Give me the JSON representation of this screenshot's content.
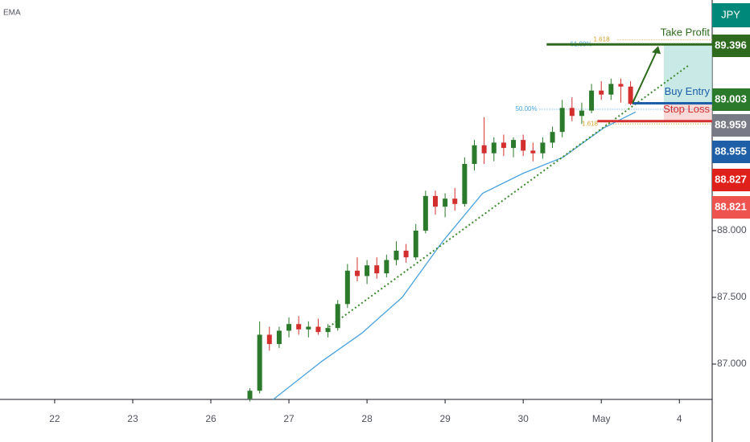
{
  "chart_data": {
    "type": "candlestick",
    "indicator_label": "EMA",
    "symbol_label": "JPY",
    "xlim": [
      -0.7,
      8.42
    ],
    "ylim": [
      86.735,
      89.729
    ],
    "xticks": [
      {
        "value": 0,
        "label": "22"
      },
      {
        "value": 1,
        "label": "23"
      },
      {
        "value": 2,
        "label": "26"
      },
      {
        "value": 3,
        "label": "27"
      },
      {
        "value": 4,
        "label": "28"
      },
      {
        "value": 5,
        "label": "29"
      },
      {
        "value": 6,
        "label": "30"
      },
      {
        "value": 7,
        "label": "May"
      },
      {
        "value": 8,
        "label": "4"
      }
    ],
    "yticks": [
      {
        "value": 87,
        "label": "87.000"
      },
      {
        "value": 87.5,
        "label": "87.500"
      },
      {
        "value": 88,
        "label": "88.000"
      }
    ],
    "up_color": "#2b7a2b",
    "down_color": "#d32f2f",
    "x": [
      2.5,
      2.625,
      2.75,
      2.875,
      3.0,
      3.125,
      3.25,
      3.375,
      3.5,
      3.625,
      3.75,
      3.875,
      4.0,
      4.125,
      4.25,
      4.375,
      4.5,
      4.625,
      4.75,
      4.875,
      5.0,
      5.125,
      5.25,
      5.375,
      5.5,
      5.625,
      5.75,
      5.875,
      6.0,
      6.125,
      6.25,
      6.375,
      6.5,
      6.625,
      6.75,
      6.875,
      7.0,
      7.125,
      7.25,
      7.375
    ],
    "open": [
      86.74,
      86.8,
      87.22,
      87.15,
      87.25,
      87.3,
      87.26,
      87.28,
      87.24,
      87.27,
      87.45,
      87.7,
      87.66,
      87.74,
      87.68,
      87.78,
      87.85,
      87.8,
      88.0,
      88.26,
      88.18,
      88.24,
      88.2,
      88.5,
      88.64,
      88.58,
      88.66,
      88.62,
      88.68,
      88.6,
      88.58,
      88.66,
      88.74,
      88.92,
      88.86,
      88.9,
      89.05,
      89.02,
      89.1,
      89.08
    ],
    "high": [
      86.82,
      87.32,
      87.28,
      87.28,
      87.35,
      87.36,
      87.32,
      87.34,
      87.3,
      87.48,
      87.75,
      87.8,
      87.78,
      87.8,
      87.82,
      87.92,
      87.9,
      88.05,
      88.3,
      88.3,
      88.28,
      88.32,
      88.55,
      88.68,
      88.85,
      88.7,
      88.72,
      88.7,
      88.72,
      88.66,
      88.7,
      88.78,
      88.98,
      89.0,
      88.96,
      89.1,
      89.12,
      89.14,
      89.14,
      89.12
    ],
    "low": [
      86.72,
      86.78,
      87.1,
      87.12,
      87.2,
      87.22,
      87.2,
      87.22,
      87.2,
      87.25,
      87.42,
      87.62,
      87.6,
      87.64,
      87.65,
      87.74,
      87.76,
      87.78,
      87.98,
      88.12,
      88.1,
      88.15,
      88.18,
      88.45,
      88.5,
      88.52,
      88.56,
      88.55,
      88.56,
      88.52,
      88.54,
      88.62,
      88.7,
      88.82,
      88.8,
      88.88,
      88.98,
      88.98,
      88.96,
      88.94
    ],
    "close": [
      86.8,
      87.22,
      87.15,
      87.25,
      87.3,
      87.26,
      87.28,
      87.24,
      87.27,
      87.45,
      87.7,
      87.66,
      87.74,
      87.68,
      87.78,
      87.85,
      87.8,
      88.0,
      88.26,
      88.18,
      88.24,
      88.2,
      88.5,
      88.64,
      88.58,
      88.66,
      88.62,
      88.68,
      88.6,
      88.58,
      88.66,
      88.74,
      88.92,
      88.86,
      88.9,
      89.05,
      89.02,
      89.1,
      89.08,
      88.95
    ],
    "ema": {
      "color": "#4aa3df",
      "x": [
        2.8,
        3.42,
        3.93,
        4.45,
        4.97,
        5.48,
        6.0,
        6.51,
        7.03,
        7.44
      ],
      "values": [
        86.735,
        87.02,
        87.23,
        87.5,
        87.92,
        88.28,
        88.43,
        88.55,
        88.77,
        88.89
      ]
    },
    "trendline": {
      "color": "#3c8a2e",
      "x": [
        3.47,
        8.11
      ],
      "values": [
        87.26,
        89.235
      ]
    },
    "levels": [
      {
        "name": "Take Profit",
        "value": 89.396,
        "color": "#2e6b1e",
        "from": 6.3
      },
      {
        "name": "Buy Entry",
        "value": 88.955,
        "color": "#1e5fa8",
        "from": 7.4
      },
      {
        "name": "Stop Loss",
        "value": 88.821,
        "color": "#d32f2f",
        "from": 6.95
      }
    ],
    "zone_start": 7.8,
    "fib_labels": [
      {
        "label": "61.80%",
        "value": 89.396,
        "from": 6.6,
        "color": "#4aa3df"
      },
      {
        "label": "1.618",
        "value": 89.43,
        "from": 6.9,
        "color": "#d4a22a"
      },
      {
        "label": "50.00%",
        "value": 88.91,
        "from": 5.9,
        "color": "#4aa3df"
      },
      {
        "label": "1.618",
        "value": 88.8,
        "from": 6.75,
        "color": "#d4a22a"
      }
    ],
    "price_tags": [
      {
        "value": 89.396,
        "label": "89.396",
        "color": "#2e6b1e"
      },
      {
        "value": 89.003,
        "label": "89.003",
        "color": "#2b7a2b"
      },
      {
        "value": 88.959,
        "label": "88.959",
        "color": "#787b86"
      },
      {
        "value": 88.955,
        "label": "88.955",
        "color": "#1e5fa8"
      },
      {
        "value": 88.827,
        "label": "88.827",
        "color": "#e0201b"
      },
      {
        "value": 88.821,
        "label": "88.821",
        "color": "#ef5350"
      }
    ]
  }
}
